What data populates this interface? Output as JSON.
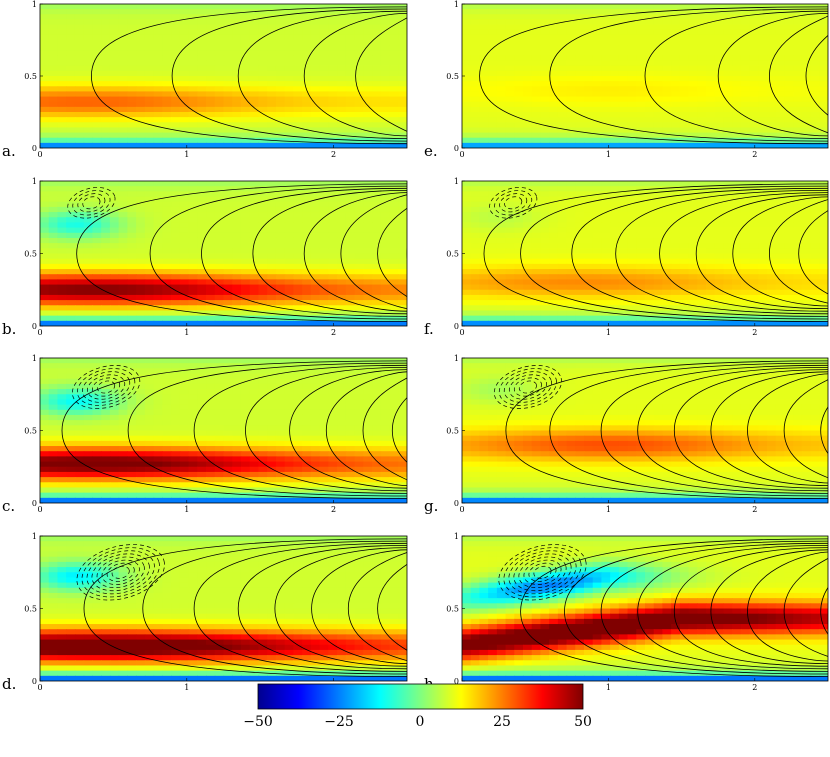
{
  "colormap": {
    "name": "jet",
    "stops": [
      "#00008f",
      "#0000ff",
      "#0080ff",
      "#00ffff",
      "#80ff80",
      "#ffff00",
      "#ff8000",
      "#ff0000",
      "#800000"
    ],
    "vmin": -50,
    "vmax": 50
  },
  "colorbar": {
    "ticks": [
      -50,
      -25,
      0,
      25,
      50
    ],
    "tick_labels": [
      "−50",
      "−25",
      "0",
      "25",
      "50"
    ]
  },
  "chart_data": [
    {
      "type": "heatmap",
      "panel": "a.",
      "x_ticks": [
        0,
        1,
        2
      ],
      "y_ticks": [
        0,
        0.5,
        1
      ],
      "x_tick_labels": [
        "0",
        "1",
        "2"
      ],
      "y_tick_labels": [
        "0",
        "0.5",
        "1"
      ],
      "xlim": [
        0,
        2.5
      ],
      "ylim": [
        0,
        1
      ],
      "field": {
        "base": 8,
        "jet_amp": 20,
        "jet_y": 0.32,
        "jet_x": 0.3,
        "jet_decay": 0.4,
        "upper_amp": 0,
        "upper_y": 0.7,
        "boundary": -45
      },
      "streamlines": {
        "solid_noses": [
          0.35,
          0.9,
          1.35,
          1.8,
          2.15
        ],
        "dashed_cells": 0
      }
    },
    {
      "type": "heatmap",
      "panel": "b.",
      "x_ticks": [
        0,
        1,
        2
      ],
      "y_ticks": [
        0,
        0.5,
        1
      ],
      "x_tick_labels": [
        "0",
        "1",
        "2"
      ],
      "y_tick_labels": [
        "0",
        "0.5",
        "1"
      ],
      "xlim": [
        0,
        2.5
      ],
      "ylim": [
        0,
        1
      ],
      "field": {
        "base": 8,
        "jet_amp": 42,
        "jet_y": 0.25,
        "jet_x": 0.35,
        "jet_decay": 0.5,
        "upper_amp": -18,
        "upper_y": 0.7,
        "boundary": -48
      },
      "streamlines": {
        "solid_noses": [
          0.25,
          0.75,
          1.1,
          1.45,
          1.8,
          2.05,
          2.3,
          2.5
        ],
        "dashed_cells": 1
      }
    },
    {
      "type": "heatmap",
      "panel": "c.",
      "x_ticks": [
        0,
        1,
        2
      ],
      "y_ticks": [
        0,
        0.5,
        1
      ],
      "x_tick_labels": [
        "0",
        "1",
        "2"
      ],
      "y_tick_labels": [
        "0",
        "0.5",
        "1"
      ],
      "xlim": [
        0,
        2.5
      ],
      "ylim": [
        0,
        1
      ],
      "field": {
        "base": 8,
        "jet_amp": 45,
        "jet_y": 0.27,
        "jet_x": 0.35,
        "jet_decay": 0.55,
        "upper_amp": -20,
        "upper_y": 0.7,
        "boundary": -48
      },
      "streamlines": {
        "solid_noses": [
          0.15,
          0.6,
          1.05,
          1.4,
          1.7,
          1.95,
          2.2,
          2.4
        ],
        "dashed_cells": 2
      }
    },
    {
      "type": "heatmap",
      "panel": "d.",
      "x_ticks": [
        0,
        1,
        2
      ],
      "y_ticks": [
        0,
        0.5,
        1
      ],
      "x_tick_labels": [
        "0",
        "1",
        "2"
      ],
      "y_tick_labels": [
        "0",
        "0.5",
        "1"
      ],
      "xlim": [
        0,
        2.5
      ],
      "ylim": [
        0,
        1
      ],
      "field": {
        "base": 8,
        "jet_amp": 50,
        "jet_y": 0.24,
        "jet_x": 0.4,
        "jet_decay": 0.7,
        "upper_amp": -22,
        "upper_y": 0.72,
        "boundary": -50
      },
      "streamlines": {
        "solid_noses": [
          0.3,
          0.7,
          1.05,
          1.35,
          1.6,
          1.85,
          2.1,
          2.3
        ],
        "dashed_cells": 3
      }
    },
    {
      "type": "heatmap",
      "panel": "e.",
      "x_ticks": [
        0,
        1,
        2
      ],
      "y_ticks": [
        0,
        0.5,
        1
      ],
      "x_tick_labels": [
        "0",
        "1",
        "2"
      ],
      "y_tick_labels": [
        "0",
        "0.5",
        "1"
      ],
      "xlim": [
        0,
        2.5
      ],
      "ylim": [
        0,
        1
      ],
      "field": {
        "base": 10,
        "jet_amp": 4,
        "jet_y": 0.4,
        "jet_x": 1.0,
        "jet_decay": 0.2,
        "upper_amp": 0,
        "upper_y": 0.7,
        "boundary": -42
      },
      "streamlines": {
        "solid_noses": [
          0.12,
          0.6,
          1.25,
          1.75,
          2.1,
          2.35
        ],
        "dashed_cells": 0
      }
    },
    {
      "type": "heatmap",
      "panel": "f.",
      "x_ticks": [
        0,
        1,
        2
      ],
      "y_ticks": [
        0,
        0.5,
        1
      ],
      "x_tick_labels": [
        "0",
        "1",
        "2"
      ],
      "y_tick_labels": [
        "0",
        "0.5",
        "1"
      ],
      "xlim": [
        0,
        2.5
      ],
      "ylim": [
        0,
        1
      ],
      "field": {
        "base": 10,
        "jet_amp": 14,
        "jet_y": 0.3,
        "jet_x": 0.8,
        "jet_decay": 0.35,
        "upper_amp": -4,
        "upper_y": 0.75,
        "boundary": -46
      },
      "streamlines": {
        "solid_noses": [
          0.15,
          0.4,
          0.75,
          1.05,
          1.35,
          1.6,
          1.85,
          2.1,
          2.3
        ],
        "dashed_cells": 1
      }
    },
    {
      "type": "heatmap",
      "panel": "g.",
      "x_ticks": [
        0,
        1,
        2
      ],
      "y_ticks": [
        0,
        0.5,
        1
      ],
      "x_tick_labels": [
        "0",
        "1",
        "2"
      ],
      "y_tick_labels": [
        "0",
        "0.5",
        "1"
      ],
      "xlim": [
        0,
        2.5
      ],
      "ylim": [
        0,
        1
      ],
      "field": {
        "base": 10,
        "jet_amp": 20,
        "jet_y": 0.4,
        "jet_x": 1.0,
        "jet_decay": 0.3,
        "upper_amp": -6,
        "upper_y": 0.78,
        "boundary": -47
      },
      "streamlines": {
        "solid_noses": [
          0.3,
          0.6,
          0.95,
          1.2,
          1.45,
          1.7,
          1.95,
          2.2,
          2.45
        ],
        "dashed_cells": 2
      }
    },
    {
      "type": "heatmap",
      "panel": "h.",
      "x_ticks": [
        0,
        1,
        2
      ],
      "y_ticks": [
        0,
        0.5,
        1
      ],
      "x_tick_labels": [
        "0",
        "1",
        "2"
      ],
      "y_tick_labels": [
        "0",
        "0.5",
        "1"
      ],
      "xlim": [
        0,
        2.5
      ],
      "ylim": [
        0,
        1
      ],
      "field": {
        "base": 10,
        "jet_amp": 50,
        "jet_y": 0.35,
        "jet_x": 0.9,
        "jet_decay": 0.9,
        "upper_amp": -35,
        "upper_y": 0.62,
        "boundary": -50,
        "tilted": true
      },
      "streamlines": {
        "solid_noses": [
          0.4,
          0.7,
          0.95,
          1.2,
          1.45,
          1.7,
          1.95,
          2.2,
          2.45
        ],
        "dashed_cells": 3
      }
    }
  ]
}
